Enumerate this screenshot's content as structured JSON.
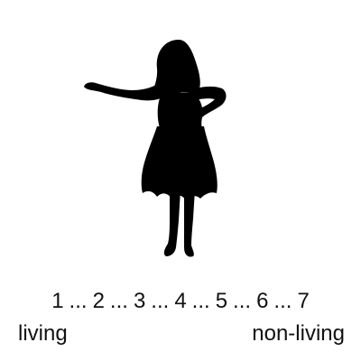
{
  "figure": {
    "icon": "woman-in-skirt-silhouette-icon",
    "fill": "#000000"
  },
  "scale": {
    "points": [
      "1",
      "2",
      "3",
      "4",
      "5",
      "6",
      "7"
    ],
    "separator": "...",
    "left_anchor": "living",
    "right_anchor": "non-living"
  }
}
